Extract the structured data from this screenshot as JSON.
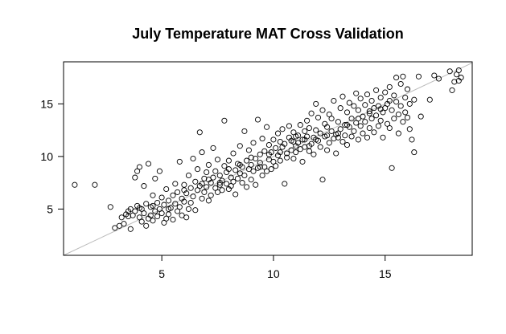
{
  "chart_data": {
    "type": "scatter",
    "title": "July Temperature MAT Cross Validation",
    "xlabel": "",
    "ylabel": "",
    "xlim": [
      0.6,
      18.9
    ],
    "ylim": [
      0.6,
      19.0
    ],
    "xticks": [
      5,
      10,
      15
    ],
    "yticks": [
      5,
      10,
      15
    ],
    "grid": false,
    "legend": "none",
    "reference_line": {
      "type": "identity",
      "color": "#bbbbbb"
    },
    "marker": "open-circle",
    "points": [
      [
        1.1,
        7.3
      ],
      [
        2.0,
        7.3
      ],
      [
        2.7,
        5.2
      ],
      [
        2.9,
        3.2
      ],
      [
        3.1,
        3.4
      ],
      [
        3.2,
        4.2
      ],
      [
        3.3,
        3.6
      ],
      [
        3.4,
        4.5
      ],
      [
        3.5,
        4.3
      ],
      [
        3.6,
        3.1
      ],
      [
        3.6,
        5.0
      ],
      [
        3.7,
        4.4
      ],
      [
        3.8,
        4.8
      ],
      [
        3.8,
        8.0
      ],
      [
        3.9,
        5.3
      ],
      [
        3.9,
        8.6
      ],
      [
        4.0,
        4.2
      ],
      [
        4.0,
        9.0
      ],
      [
        4.1,
        5.0
      ],
      [
        4.1,
        3.8
      ],
      [
        4.2,
        4.6
      ],
      [
        4.2,
        7.2
      ],
      [
        4.3,
        5.5
      ],
      [
        4.3,
        3.4
      ],
      [
        4.4,
        4.1
      ],
      [
        4.4,
        9.3
      ],
      [
        4.5,
        5.2
      ],
      [
        4.5,
        4.4
      ],
      [
        4.6,
        6.3
      ],
      [
        4.6,
        3.9
      ],
      [
        4.7,
        4.8
      ],
      [
        4.7,
        7.9
      ],
      [
        4.8,
        4.3
      ],
      [
        4.8,
        5.6
      ],
      [
        4.9,
        5.0
      ],
      [
        4.9,
        8.6
      ],
      [
        5.0,
        4.6
      ],
      [
        5.0,
        6.1
      ],
      [
        5.1,
        3.7
      ],
      [
        5.1,
        5.4
      ],
      [
        5.2,
        4.1
      ],
      [
        5.2,
        6.9
      ],
      [
        5.3,
        5.8
      ],
      [
        5.3,
        4.5
      ],
      [
        5.4,
        5.1
      ],
      [
        5.5,
        6.3
      ],
      [
        5.5,
        4.0
      ],
      [
        5.6,
        5.5
      ],
      [
        5.6,
        7.4
      ],
      [
        5.7,
        4.8
      ],
      [
        5.7,
        6.6
      ],
      [
        5.8,
        5.2
      ],
      [
        5.8,
        9.5
      ],
      [
        5.9,
        6.0
      ],
      [
        5.9,
        4.4
      ],
      [
        6.0,
        5.7
      ],
      [
        6.0,
        7.3
      ],
      [
        6.1,
        4.2
      ],
      [
        6.1,
        6.5
      ],
      [
        6.2,
        5.0
      ],
      [
        6.2,
        8.2
      ],
      [
        6.3,
        7.0
      ],
      [
        6.3,
        5.6
      ],
      [
        6.4,
        9.8
      ],
      [
        6.4,
        6.2
      ],
      [
        6.5,
        7.6
      ],
      [
        6.5,
        4.9
      ],
      [
        6.6,
        8.8
      ],
      [
        6.6,
        6.8
      ],
      [
        6.7,
        12.3
      ],
      [
        6.7,
        7.2
      ],
      [
        6.8,
        6.0
      ],
      [
        6.8,
        10.4
      ],
      [
        6.9,
        7.9
      ],
      [
        6.9,
        6.6
      ],
      [
        7.0,
        8.5
      ],
      [
        7.0,
        7.1
      ],
      [
        7.1,
        5.8
      ],
      [
        7.1,
        9.2
      ],
      [
        7.2,
        7.5
      ],
      [
        7.2,
        6.3
      ],
      [
        7.3,
        8.0
      ],
      [
        7.3,
        10.8
      ],
      [
        7.4,
        7.0
      ],
      [
        7.4,
        8.6
      ],
      [
        7.5,
        6.6
      ],
      [
        7.5,
        9.7
      ],
      [
        7.6,
        7.3
      ],
      [
        7.6,
        8.2
      ],
      [
        7.7,
        6.8
      ],
      [
        7.7,
        7.7
      ],
      [
        7.8,
        9.1
      ],
      [
        7.8,
        13.4
      ],
      [
        7.9,
        7.4
      ],
      [
        7.9,
        8.5
      ],
      [
        8.0,
        6.9
      ],
      [
        8.0,
        9.6
      ],
      [
        8.1,
        7.2
      ],
      [
        8.1,
        8.0
      ],
      [
        8.2,
        10.3
      ],
      [
        8.2,
        7.6
      ],
      [
        8.3,
        8.7
      ],
      [
        8.3,
        6.4
      ],
      [
        8.4,
        9.3
      ],
      [
        8.4,
        7.9
      ],
      [
        8.5,
        8.4
      ],
      [
        8.5,
        11.0
      ],
      [
        8.6,
        7.5
      ],
      [
        8.6,
        9.0
      ],
      [
        8.7,
        12.4
      ],
      [
        8.7,
        8.2
      ],
      [
        8.8,
        7.1
      ],
      [
        8.8,
        9.6
      ],
      [
        8.9,
        8.8
      ],
      [
        8.9,
        10.6
      ],
      [
        9.0,
        9.2
      ],
      [
        9.0,
        7.8
      ],
      [
        9.1,
        8.6
      ],
      [
        9.1,
        11.3
      ],
      [
        9.2,
        9.8
      ],
      [
        9.2,
        7.3
      ],
      [
        9.3,
        13.5
      ],
      [
        9.3,
        8.9
      ],
      [
        9.4,
        10.2
      ],
      [
        9.4,
        9.4
      ],
      [
        9.5,
        8.2
      ],
      [
        9.5,
        11.7
      ],
      [
        9.6,
        9.0
      ],
      [
        9.6,
        10.5
      ],
      [
        9.7,
        8.6
      ],
      [
        9.7,
        12.8
      ],
      [
        9.8,
        9.7
      ],
      [
        9.8,
        11.1
      ],
      [
        9.9,
        10.4
      ],
      [
        9.9,
        8.8
      ],
      [
        10.0,
        9.5
      ],
      [
        10.0,
        11.6
      ],
      [
        10.1,
        10.8
      ],
      [
        10.1,
        9.1
      ],
      [
        10.2,
        12.2
      ],
      [
        10.2,
        10.1
      ],
      [
        10.3,
        11.4
      ],
      [
        10.3,
        9.6
      ],
      [
        10.4,
        10.9
      ],
      [
        10.4,
        12.6
      ],
      [
        10.5,
        7.4
      ],
      [
        10.5,
        11.2
      ],
      [
        10.6,
        10.3
      ],
      [
        10.6,
        9.9
      ],
      [
        10.7,
        11.8
      ],
      [
        10.7,
        12.9
      ],
      [
        10.8,
        10.6
      ],
      [
        10.8,
        11.5
      ],
      [
        10.9,
        9.8
      ],
      [
        10.9,
        12.3
      ],
      [
        11.0,
        11.0
      ],
      [
        11.0,
        10.4
      ],
      [
        11.1,
        12.0
      ],
      [
        11.1,
        11.3
      ],
      [
        11.2,
        10.7
      ],
      [
        11.2,
        13.0
      ],
      [
        11.3,
        11.6
      ],
      [
        11.3,
        9.5
      ],
      [
        11.4,
        12.4
      ],
      [
        11.4,
        10.9
      ],
      [
        11.5,
        11.9
      ],
      [
        11.5,
        13.4
      ],
      [
        11.6,
        10.5
      ],
      [
        11.6,
        12.7
      ],
      [
        11.7,
        11.2
      ],
      [
        11.7,
        14.1
      ],
      [
        11.8,
        11.8
      ],
      [
        11.8,
        10.2
      ],
      [
        11.9,
        12.5
      ],
      [
        11.9,
        15.0
      ],
      [
        12.0,
        11.5
      ],
      [
        12.0,
        13.7
      ],
      [
        12.1,
        10.9
      ],
      [
        12.1,
        12.2
      ],
      [
        12.2,
        14.4
      ],
      [
        12.2,
        7.8
      ],
      [
        12.3,
        11.9
      ],
      [
        12.3,
        13.1
      ],
      [
        12.4,
        10.6
      ],
      [
        12.4,
        12.8
      ],
      [
        12.5,
        11.3
      ],
      [
        12.5,
        14.0
      ],
      [
        12.6,
        12.4
      ],
      [
        12.6,
        13.6
      ],
      [
        12.7,
        11.7
      ],
      [
        12.7,
        15.3
      ],
      [
        12.8,
        12.1
      ],
      [
        12.8,
        10.3
      ],
      [
        12.9,
        13.3
      ],
      [
        12.9,
        11.8
      ],
      [
        13.0,
        14.6
      ],
      [
        13.0,
        12.6
      ],
      [
        13.1,
        11.4
      ],
      [
        13.1,
        15.7
      ],
      [
        13.2,
        13.0
      ],
      [
        13.2,
        12.0
      ],
      [
        13.3,
        14.2
      ],
      [
        13.3,
        11.1
      ],
      [
        13.4,
        12.8
      ],
      [
        13.4,
        15.1
      ],
      [
        13.5,
        13.6
      ],
      [
        13.5,
        11.9
      ],
      [
        13.6,
        14.8
      ],
      [
        13.6,
        12.4
      ],
      [
        13.7,
        13.2
      ],
      [
        13.7,
        16.0
      ],
      [
        13.8,
        11.6
      ],
      [
        13.8,
        14.4
      ],
      [
        13.9,
        12.9
      ],
      [
        13.9,
        15.5
      ],
      [
        14.0,
        13.8
      ],
      [
        14.0,
        12.2
      ],
      [
        14.1,
        14.9
      ],
      [
        14.1,
        13.3
      ],
      [
        14.2,
        11.8
      ],
      [
        14.2,
        15.9
      ],
      [
        14.3,
        14.1
      ],
      [
        14.3,
        12.7
      ],
      [
        14.4,
        15.3
      ],
      [
        14.4,
        13.6
      ],
      [
        14.5,
        14.6
      ],
      [
        14.5,
        12.3
      ],
      [
        14.6,
        16.3
      ],
      [
        14.6,
        13.9
      ],
      [
        14.7,
        14.8
      ],
      [
        14.7,
        12.9
      ],
      [
        14.8,
        15.6
      ],
      [
        14.8,
        13.4
      ],
      [
        14.9,
        14.2
      ],
      [
        14.9,
        11.8
      ],
      [
        15.0,
        16.1
      ],
      [
        15.0,
        14.6
      ],
      [
        15.1,
        13.1
      ],
      [
        15.1,
        15.0
      ],
      [
        15.2,
        12.7
      ],
      [
        15.2,
        16.6
      ],
      [
        15.3,
        8.9
      ],
      [
        15.3,
        14.4
      ],
      [
        15.4,
        15.8
      ],
      [
        15.4,
        13.6
      ],
      [
        15.5,
        17.5
      ],
      [
        15.5,
        15.2
      ],
      [
        15.6,
        14.0
      ],
      [
        15.6,
        12.2
      ],
      [
        15.7,
        16.9
      ],
      [
        15.7,
        14.8
      ],
      [
        15.8,
        13.3
      ],
      [
        15.8,
        17.6
      ],
      [
        15.9,
        15.6
      ],
      [
        15.9,
        14.2
      ],
      [
        16.0,
        16.4
      ],
      [
        16.0,
        13.7
      ],
      [
        16.1,
        15.0
      ],
      [
        16.1,
        12.6
      ],
      [
        16.2,
        11.6
      ],
      [
        16.3,
        15.4
      ],
      [
        16.3,
        10.4
      ],
      [
        16.5,
        17.6
      ],
      [
        16.6,
        13.8
      ],
      [
        17.0,
        15.4
      ],
      [
        17.2,
        17.7
      ],
      [
        17.4,
        17.4
      ],
      [
        17.9,
        18.1
      ],
      [
        18.0,
        16.3
      ],
      [
        18.1,
        17.1
      ],
      [
        18.2,
        17.8
      ],
      [
        18.3,
        17.2
      ],
      [
        18.3,
        18.2
      ],
      [
        18.4,
        17.5
      ],
      [
        3.5,
        4.8
      ],
      [
        4.0,
        5.1
      ],
      [
        4.6,
        5.3
      ],
      [
        5.3,
        5.0
      ],
      [
        6.0,
        6.8
      ],
      [
        6.8,
        7.4
      ],
      [
        7.1,
        7.8
      ],
      [
        7.6,
        7.5
      ],
      [
        8.0,
        8.8
      ],
      [
        8.5,
        9.2
      ],
      [
        9.0,
        9.9
      ],
      [
        9.4,
        9.0
      ],
      [
        9.8,
        10.2
      ],
      [
        10.3,
        10.4
      ],
      [
        10.9,
        11.4
      ],
      [
        11.4,
        11.6
      ],
      [
        11.9,
        11.6
      ],
      [
        12.4,
        12.0
      ],
      [
        12.9,
        12.2
      ],
      [
        13.3,
        13.0
      ],
      [
        13.8,
        13.6
      ],
      [
        14.3,
        14.3
      ],
      [
        14.8,
        14.5
      ],
      [
        15.2,
        15.3
      ],
      [
        11.0,
        11.9
      ],
      [
        11.6,
        11.0
      ]
    ]
  }
}
